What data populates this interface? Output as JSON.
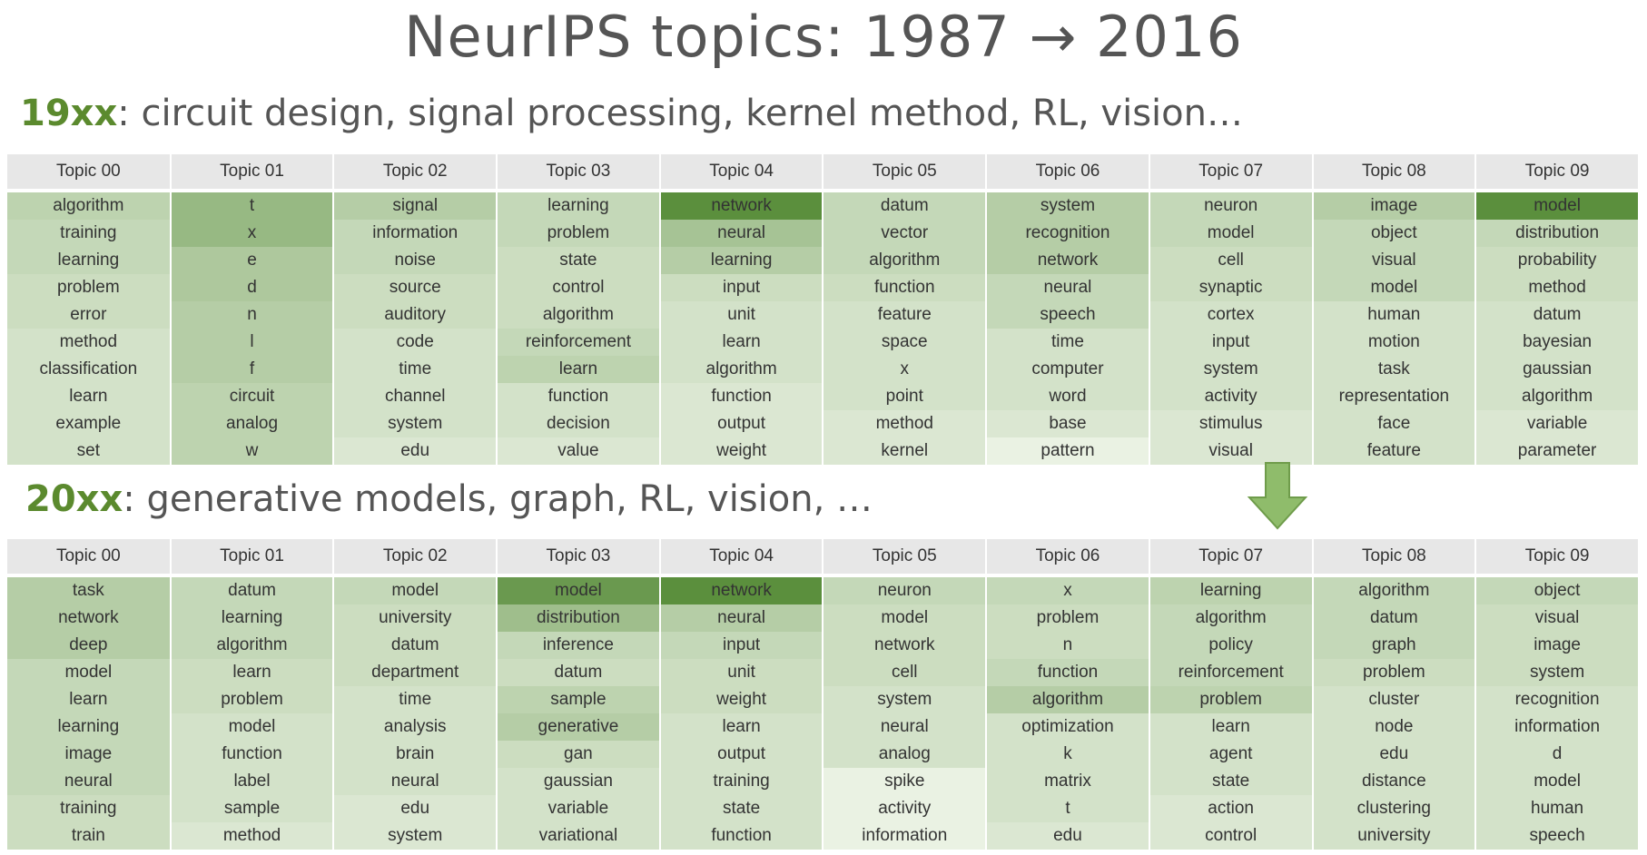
{
  "title": "NeurIPS topics: 1987 → 2016",
  "section1": {
    "era": "19xx",
    "text": ": circuit design, signal processing, kernel method, RL, vision…",
    "headers": [
      "Topic 00",
      "Topic 01",
      "Topic 02",
      "Topic 03",
      "Topic 04",
      "Topic 05",
      "Topic 06",
      "Topic 07",
      "Topic 08",
      "Topic 09"
    ],
    "rows": [
      [
        "algorithm",
        "t",
        "signal",
        "learning",
        "network",
        "datum",
        "system",
        "neuron",
        "image",
        "model"
      ],
      [
        "training",
        "x",
        "information",
        "problem",
        "neural",
        "vector",
        "recognition",
        "model",
        "object",
        "distribution"
      ],
      [
        "learning",
        "e",
        "noise",
        "state",
        "learning",
        "algorithm",
        "network",
        "cell",
        "visual",
        "probability"
      ],
      [
        "problem",
        "d",
        "source",
        "control",
        "input",
        "function",
        "neural",
        "synaptic",
        "model",
        "method"
      ],
      [
        "error",
        "n",
        "auditory",
        "algorithm",
        "unit",
        "feature",
        "speech",
        "cortex",
        "human",
        "datum"
      ],
      [
        "method",
        "l",
        "code",
        "reinforcement",
        "learn",
        "space",
        "time",
        "input",
        "motion",
        "bayesian"
      ],
      [
        "classification",
        "f",
        "time",
        "learn",
        "algorithm",
        "x",
        "computer",
        "system",
        "task",
        "gaussian"
      ],
      [
        "learn",
        "circuit",
        "channel",
        "function",
        "function",
        "point",
        "word",
        "activity",
        "representation",
        "algorithm"
      ],
      [
        "example",
        "analog",
        "system",
        "decision",
        "output",
        "method",
        "base",
        "stimulus",
        "face",
        "variable"
      ],
      [
        "set",
        "w",
        "edu",
        "value",
        "weight",
        "kernel",
        "pattern",
        "visual",
        "feature",
        "parameter"
      ]
    ],
    "shades": [
      [
        0.35,
        0.6,
        0.4,
        0.3,
        1.0,
        0.3,
        0.4,
        0.3,
        0.4,
        1.0
      ],
      [
        0.3,
        0.6,
        0.3,
        0.3,
        0.5,
        0.3,
        0.4,
        0.3,
        0.3,
        0.3
      ],
      [
        0.3,
        0.45,
        0.3,
        0.25,
        0.4,
        0.3,
        0.4,
        0.25,
        0.3,
        0.25
      ],
      [
        0.25,
        0.45,
        0.25,
        0.25,
        0.25,
        0.25,
        0.3,
        0.25,
        0.3,
        0.25
      ],
      [
        0.25,
        0.4,
        0.25,
        0.25,
        0.2,
        0.2,
        0.3,
        0.2,
        0.2,
        0.2
      ],
      [
        0.2,
        0.4,
        0.2,
        0.3,
        0.2,
        0.2,
        0.2,
        0.2,
        0.2,
        0.2
      ],
      [
        0.2,
        0.4,
        0.2,
        0.35,
        0.2,
        0.2,
        0.2,
        0.2,
        0.2,
        0.2
      ],
      [
        0.2,
        0.35,
        0.2,
        0.2,
        0.15,
        0.2,
        0.2,
        0.2,
        0.2,
        0.2
      ],
      [
        0.2,
        0.35,
        0.2,
        0.2,
        0.15,
        0.15,
        0.15,
        0.15,
        0.2,
        0.15
      ],
      [
        0.2,
        0.35,
        0.15,
        0.15,
        0.15,
        0.15,
        0.05,
        0.15,
        0.2,
        0.15
      ]
    ]
  },
  "section2": {
    "era": "20xx",
    "text": ": generative models, graph, RL, vision, …",
    "headers": [
      "Topic 00",
      "Topic 01",
      "Topic 02",
      "Topic 03",
      "Topic 04",
      "Topic 05",
      "Topic 06",
      "Topic 07",
      "Topic 08",
      "Topic 09"
    ],
    "rows": [
      [
        "task",
        "datum",
        "model",
        "model",
        "network",
        "neuron",
        "x",
        "learning",
        "algorithm",
        "object"
      ],
      [
        "network",
        "learning",
        "university",
        "distribution",
        "neural",
        "model",
        "problem",
        "algorithm",
        "datum",
        "visual"
      ],
      [
        "deep",
        "algorithm",
        "datum",
        "inference",
        "input",
        "network",
        "n",
        "policy",
        "graph",
        "image"
      ],
      [
        "model",
        "learn",
        "department",
        "datum",
        "unit",
        "cell",
        "function",
        "reinforcement",
        "problem",
        "system"
      ],
      [
        "learn",
        "problem",
        "time",
        "sample",
        "weight",
        "system",
        "algorithm",
        "problem",
        "cluster",
        "recognition"
      ],
      [
        "learning",
        "model",
        "analysis",
        "generative",
        "learn",
        "neural",
        "optimization",
        "learn",
        "node",
        "information"
      ],
      [
        "image",
        "function",
        "brain",
        "gan",
        "output",
        "analog",
        "k",
        "agent",
        "edu",
        "d"
      ],
      [
        "neural",
        "label",
        "neural",
        "gaussian",
        "training",
        "spike",
        "matrix",
        "state",
        "distance",
        "model"
      ],
      [
        "training",
        "sample",
        "edu",
        "variable",
        "state",
        "activity",
        "t",
        "action",
        "clustering",
        "human"
      ],
      [
        "train",
        "method",
        "system",
        "variational",
        "function",
        "information",
        "edu",
        "control",
        "university",
        "speech"
      ]
    ],
    "shades": [
      [
        0.4,
        0.3,
        0.3,
        0.9,
        1.0,
        0.3,
        0.3,
        0.35,
        0.3,
        0.3
      ],
      [
        0.4,
        0.3,
        0.25,
        0.55,
        0.4,
        0.25,
        0.25,
        0.3,
        0.3,
        0.25
      ],
      [
        0.4,
        0.3,
        0.25,
        0.3,
        0.3,
        0.25,
        0.25,
        0.3,
        0.3,
        0.25
      ],
      [
        0.3,
        0.25,
        0.25,
        0.25,
        0.25,
        0.25,
        0.3,
        0.3,
        0.25,
        0.25
      ],
      [
        0.3,
        0.25,
        0.2,
        0.35,
        0.25,
        0.2,
        0.4,
        0.35,
        0.2,
        0.2
      ],
      [
        0.3,
        0.2,
        0.2,
        0.4,
        0.2,
        0.2,
        0.2,
        0.2,
        0.2,
        0.2
      ],
      [
        0.3,
        0.2,
        0.2,
        0.25,
        0.2,
        0.2,
        0.2,
        0.2,
        0.2,
        0.2
      ],
      [
        0.3,
        0.2,
        0.2,
        0.2,
        0.2,
        0.05,
        0.2,
        0.2,
        0.2,
        0.2
      ],
      [
        0.25,
        0.2,
        0.15,
        0.2,
        0.2,
        0.05,
        0.2,
        0.15,
        0.2,
        0.2
      ],
      [
        0.25,
        0.15,
        0.15,
        0.2,
        0.2,
        0.05,
        0.15,
        0.15,
        0.2,
        0.2
      ]
    ]
  },
  "colors": {
    "accent": "#5b8a2e",
    "cell_light": "#f1f7ec",
    "cell_dark": "#5b8f3d",
    "arrow_fill": "#8fbc6b",
    "arrow_stroke": "#6f9c4b"
  }
}
